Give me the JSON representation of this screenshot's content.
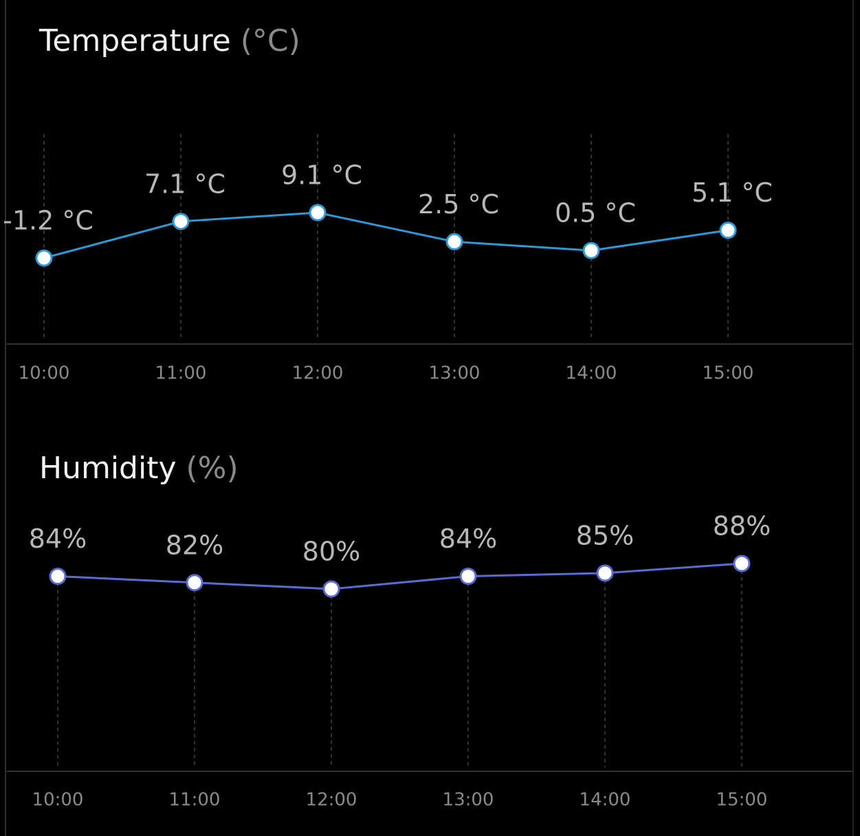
{
  "chart_data": [
    {
      "type": "line",
      "title": "Temperature",
      "unit": "(°C)",
      "categories": [
        "10:00",
        "11:00",
        "12:00",
        "13:00",
        "14:00",
        "15:00"
      ],
      "series": [
        {
          "color": "#2a9ad8",
          "values": [
            -1.2,
            7.1,
            9.1,
            2.5,
            0.5,
            5.1
          ],
          "value_labels": [
            "-1.2 °C",
            "7.1 °C",
            "9.1 °C",
            "2.5 °C",
            "0.5 °C",
            "5.1 °C"
          ]
        }
      ]
    },
    {
      "type": "line",
      "title": "Humidity",
      "unit": "(%)",
      "categories": [
        "10:00",
        "11:00",
        "12:00",
        "13:00",
        "14:00",
        "15:00"
      ],
      "series": [
        {
          "color": "#5a6cd4",
          "values": [
            84,
            82,
            80,
            84,
            85,
            88
          ],
          "value_labels": [
            "84%",
            "82%",
            "80%",
            "84%",
            "85%",
            "88%"
          ]
        }
      ]
    }
  ]
}
